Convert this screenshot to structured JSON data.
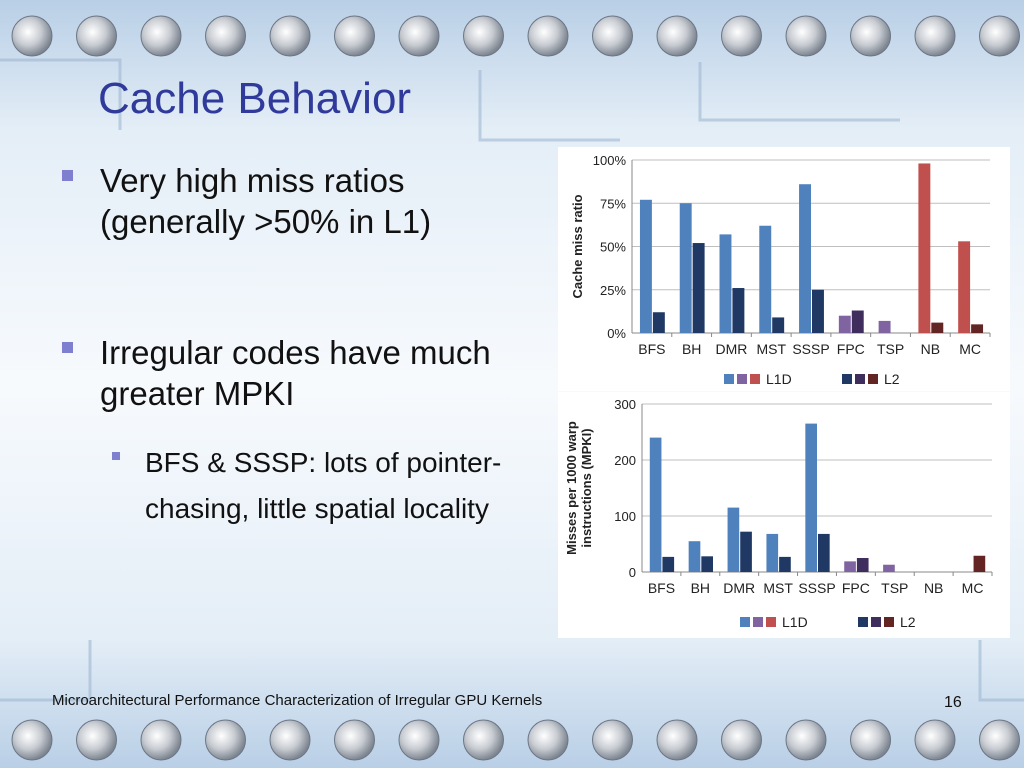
{
  "slide": {
    "title": "Cache Behavior",
    "bullets": [
      {
        "text": "Very high miss ratios (generally >50% in L1)"
      },
      {
        "text": "Irregular codes have much greater MPKI"
      }
    ],
    "sub_bullets": [
      {
        "text": "BFS & SSSP: lots of pointer-chasing, little spatial locality"
      }
    ],
    "footer": "Microarchitectural Performance Characterization of Irregular GPU Kernels",
    "page_number": "16"
  },
  "colors": {
    "background": "#dce9f4",
    "title": "#2f3a9b",
    "bullet_marker": "#7f7fd0",
    "l1d": [
      "#4f81bd",
      "#8064a2",
      "#c0504d"
    ],
    "l2": [
      "#1f3864",
      "#3f2d5e",
      "#632523"
    ]
  },
  "chart_data": [
    {
      "type": "bar",
      "ylabel": "Cache miss ratio",
      "categories": [
        "BFS",
        "BH",
        "DMR",
        "MST",
        "SSSP",
        "FPC",
        "TSP",
        "NB",
        "MC"
      ],
      "category_group": [
        0,
        0,
        0,
        0,
        0,
        1,
        1,
        2,
        2
      ],
      "y_ticks": [
        "0%",
        "25%",
        "50%",
        "75%",
        "100%"
      ],
      "ylim": [
        0,
        100
      ],
      "grid": true,
      "legend_position": "bottom",
      "series": [
        {
          "name": "L1D",
          "values": [
            77,
            75,
            57,
            62,
            86,
            10,
            7,
            98,
            53
          ]
        },
        {
          "name": "L2",
          "values": [
            12,
            52,
            26,
            9,
            25,
            13,
            0,
            6,
            5
          ]
        }
      ]
    },
    {
      "type": "bar",
      "ylabel": "Misses per 1000 warp instructions (MPKI)",
      "ylabel_lines": [
        "Misses per 1000 warp",
        "instructions  (MPKI)"
      ],
      "categories": [
        "BFS",
        "BH",
        "DMR",
        "MST",
        "SSSP",
        "FPC",
        "TSP",
        "NB",
        "MC"
      ],
      "category_group": [
        0,
        0,
        0,
        0,
        0,
        1,
        1,
        2,
        2
      ],
      "y_ticks": [
        "0",
        "100",
        "200",
        "300"
      ],
      "ylim": [
        0,
        300
      ],
      "grid": true,
      "legend_position": "bottom",
      "series": [
        {
          "name": "L1D",
          "values": [
            240,
            55,
            115,
            68,
            265,
            19,
            13,
            0,
            0
          ]
        },
        {
          "name": "L2",
          "values": [
            27,
            28,
            72,
            27,
            68,
            25,
            0,
            0,
            29
          ]
        }
      ]
    }
  ]
}
